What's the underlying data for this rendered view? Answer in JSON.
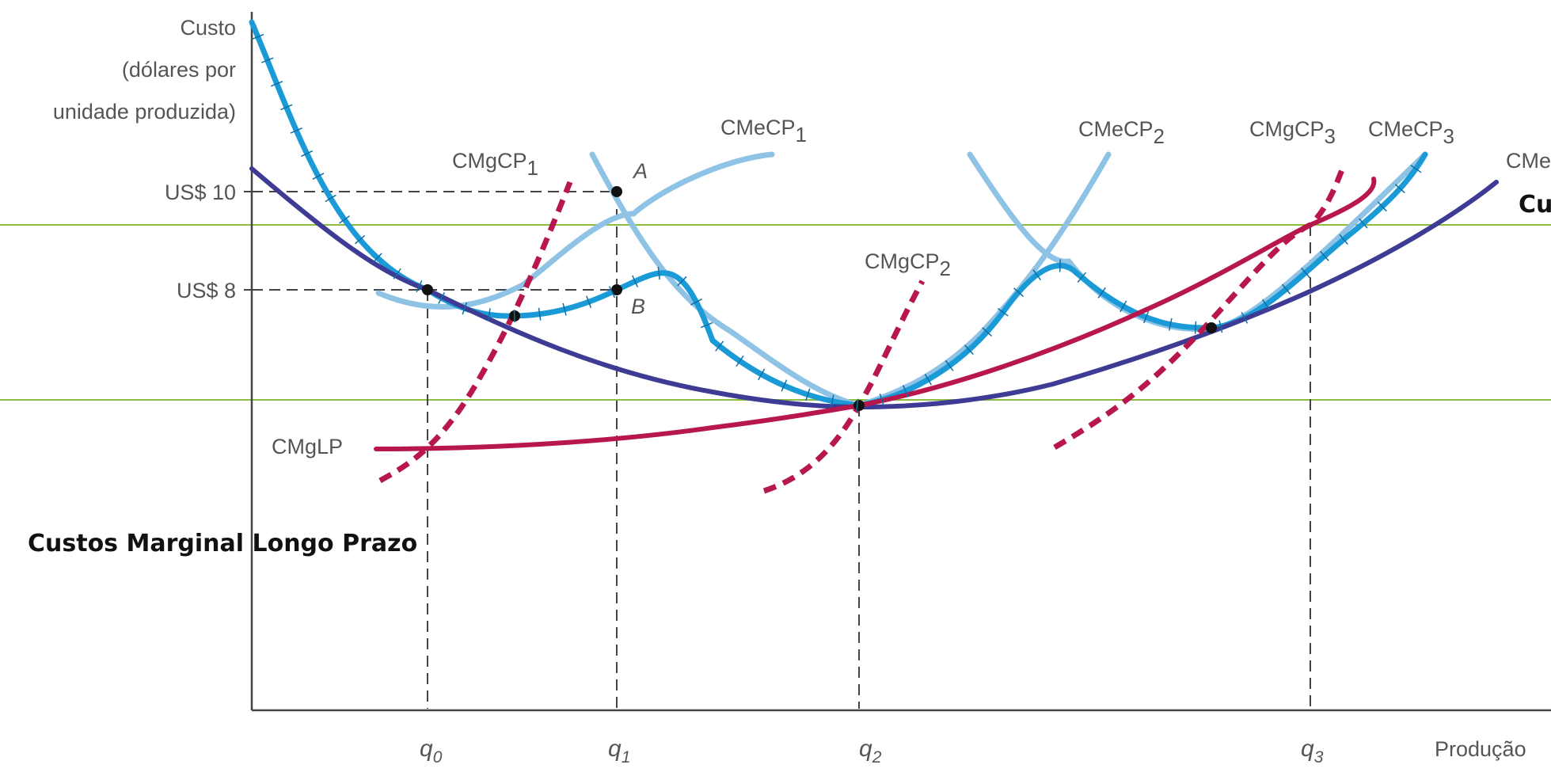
{
  "chart_data": {
    "type": "line",
    "y_axis_label": [
      "Custo",
      "(dólares por",
      "unidade produzida)"
    ],
    "x_axis_label": "Produção",
    "y_ticks": [
      "US$ 10",
      "US$ 8"
    ],
    "x_ticks": [
      {
        "base": "q",
        "sub": "0"
      },
      {
        "base": "q",
        "sub": "1"
      },
      {
        "base": "q",
        "sub": "2"
      },
      {
        "base": "q",
        "sub": "3"
      }
    ],
    "curves": [
      {
        "base": "CMeCP",
        "sub": "1"
      },
      {
        "base": "CMeCP",
        "sub": "2"
      },
      {
        "base": "CMeCP",
        "sub": "3"
      },
      {
        "base": "CMgCP",
        "sub": "1"
      },
      {
        "base": "CMgCP",
        "sub": "2"
      },
      {
        "base": "CMgCP",
        "sub": "3"
      },
      {
        "base": "CMgLP",
        "sub": ""
      },
      {
        "base": "CMe",
        "sub": ""
      }
    ],
    "points": [
      {
        "label": "A",
        "y": 10
      },
      {
        "label": "B",
        "y": 8
      }
    ],
    "annotations": [
      "Custos Marginal Longo Prazo",
      "Cu"
    ],
    "colors": {
      "sac": "#8ec3e6",
      "envelope": "#1a9ad6",
      "lac": "#3e3b94",
      "smc": "#b8174e",
      "lmc": "#b8174e",
      "guide": "#8cbd3f",
      "axis": "#444444"
    }
  }
}
